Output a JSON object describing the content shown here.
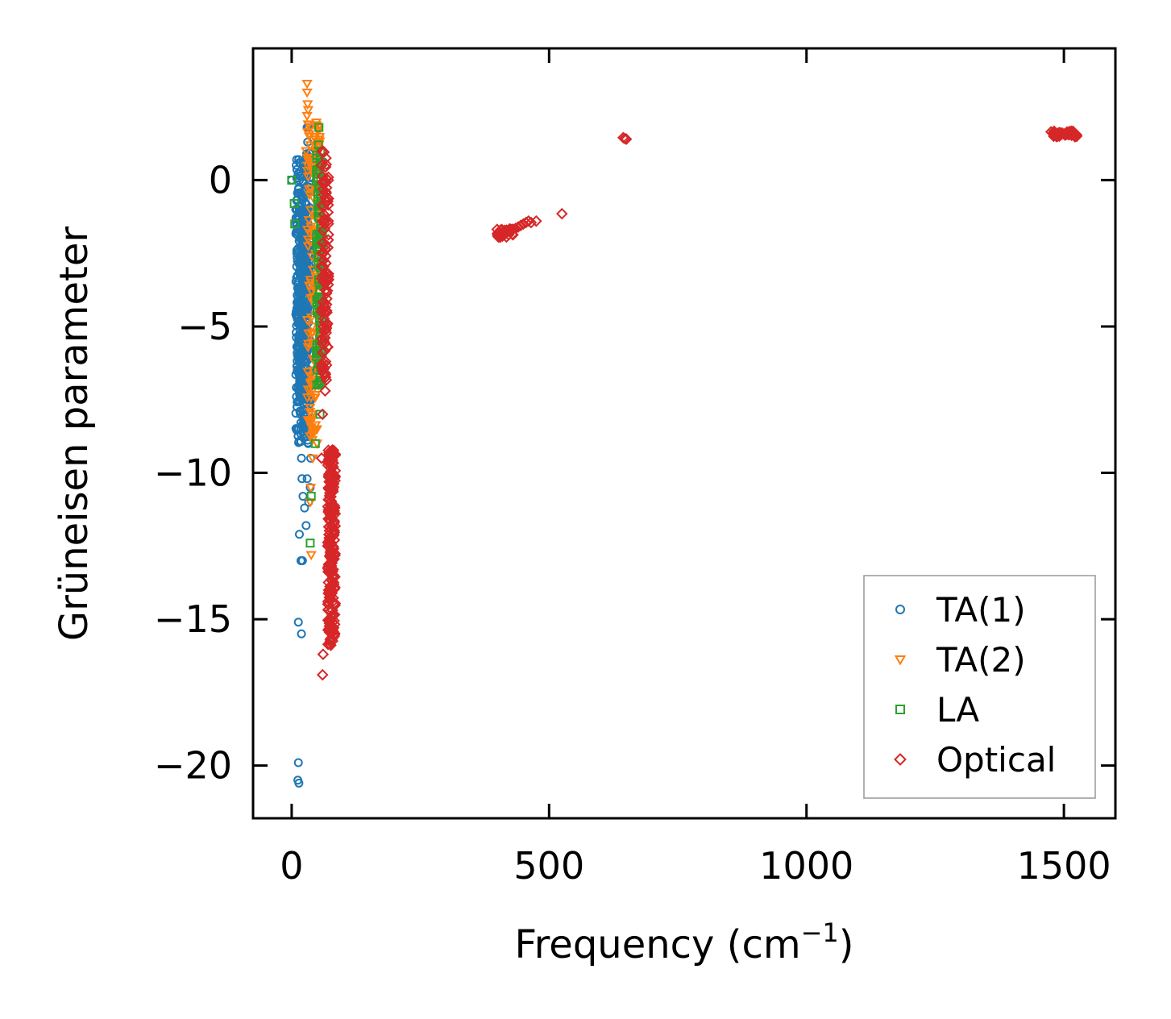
{
  "chart_data": {
    "type": "scatter",
    "title": "",
    "xlabel": "Frequency (cm",
    "xlabel_sup": "−1",
    "xlabel_end": ")",
    "ylabel": "Grüneisen parameter",
    "xlim": [
      -75,
      1600
    ],
    "ylim": [
      -21.8,
      4.5
    ],
    "xticks": [
      0,
      500,
      1000,
      1500
    ],
    "xtick_labels": [
      "0",
      "500",
      "1000",
      "1500"
    ],
    "yticks": [
      0,
      -5,
      -10,
      -15,
      -20
    ],
    "ytick_labels": [
      "0",
      "−5",
      "−10",
      "−15",
      "−20"
    ],
    "legend_position": "lower-right",
    "series": [
      {
        "name": "TA(1)",
        "marker": "circle",
        "color": "#1f77b4",
        "points": [
          [
            0,
            0.0
          ],
          [
            8,
            -1.0
          ],
          [
            10,
            -2.5
          ],
          [
            12,
            -3.5
          ],
          [
            14,
            -5.5
          ],
          [
            15,
            -6.2
          ],
          [
            16,
            -7.0
          ],
          [
            17,
            -8.0
          ],
          [
            18,
            -8.5
          ],
          [
            19,
            -9.5
          ],
          [
            20,
            -10.2
          ],
          [
            22,
            -10.8
          ],
          [
            15,
            -12.1
          ],
          [
            18,
            -13.0
          ],
          [
            21,
            -13.0
          ],
          [
            13,
            -15.1
          ],
          [
            19,
            -15.5
          ],
          [
            13,
            -19.9
          ],
          [
            12,
            -20.5
          ],
          [
            14,
            -20.6
          ],
          [
            20,
            -1.5
          ],
          [
            22,
            -2.0
          ],
          [
            24,
            -3.0
          ],
          [
            25,
            -4.0
          ],
          [
            26,
            -5.0
          ],
          [
            27,
            -6.0
          ],
          [
            28,
            -7.0
          ],
          [
            29,
            -4.5
          ],
          [
            30,
            -2.2
          ],
          [
            31,
            -1.2
          ],
          [
            28,
            -0.5
          ],
          [
            27,
            0.4
          ],
          [
            29,
            0.9
          ],
          [
            31,
            1.3
          ],
          [
            30,
            1.8
          ],
          [
            33,
            1.8
          ],
          [
            35,
            -3.8
          ],
          [
            36,
            -5.5
          ],
          [
            38,
            -7.5
          ],
          [
            32,
            -9.0
          ],
          [
            30,
            -10.2
          ],
          [
            33,
            -11.0
          ],
          [
            28,
            -11.8
          ],
          [
            18,
            -4.2
          ],
          [
            19,
            -6.8
          ],
          [
            23,
            -8.8
          ],
          [
            34,
            -6.5
          ],
          [
            37,
            -9.5
          ],
          [
            25,
            -11.2
          ],
          [
            36,
            -10.5
          ]
        ],
        "bands": [
          [
            8,
            36,
            -9.0,
            1.0,
            360
          ],
          [
            10,
            30,
            -7.5,
            -1.0,
            160
          ]
        ]
      },
      {
        "name": "TA(2)",
        "marker": "triangle-down",
        "color": "#ff7f0e",
        "points": [
          [
            30,
            3.3
          ],
          [
            30,
            3.0
          ],
          [
            31,
            2.6
          ],
          [
            32,
            2.4
          ],
          [
            30,
            2.2
          ],
          [
            33,
            1.9
          ],
          [
            34,
            1.5
          ],
          [
            28,
            1.0
          ],
          [
            31,
            0.5
          ],
          [
            35,
            -0.5
          ],
          [
            36,
            -1.8
          ],
          [
            38,
            -3.5
          ],
          [
            40,
            -5.0
          ],
          [
            42,
            -6.5
          ],
          [
            39,
            -8.0
          ],
          [
            41,
            -9.5
          ],
          [
            37,
            -10.5
          ],
          [
            36,
            -11.0
          ],
          [
            38,
            -12.8
          ],
          [
            44,
            -4.0
          ],
          [
            46,
            -2.5
          ],
          [
            45,
            -6.8
          ],
          [
            52,
            -7.0
          ],
          [
            54,
            -5.2
          ],
          [
            48,
            -8.5
          ],
          [
            50,
            -1.0
          ],
          [
            55,
            -3.0
          ],
          [
            57,
            -6.0
          ]
        ],
        "bands": [
          [
            30,
            56,
            -9.0,
            2.0,
            140
          ]
        ]
      },
      {
        "name": "LA",
        "marker": "square",
        "color": "#2ca02c",
        "points": [
          [
            0,
            0.0
          ],
          [
            5,
            -0.8
          ],
          [
            6,
            -1.5
          ],
          [
            53,
            1.8
          ],
          [
            52,
            1.2
          ],
          [
            55,
            0.3
          ],
          [
            56,
            -0.8
          ],
          [
            57,
            -1.8
          ],
          [
            55,
            -3.0
          ],
          [
            54,
            -4.5
          ],
          [
            56,
            -5.5
          ],
          [
            53,
            -7.0
          ],
          [
            55,
            -8.0
          ],
          [
            38,
            -10.8
          ],
          [
            36,
            -12.4
          ],
          [
            50,
            -2.2
          ],
          [
            58,
            -2.8
          ],
          [
            59,
            -4.0
          ],
          [
            57,
            -6.5
          ],
          [
            46,
            -9.0
          ]
        ],
        "bands": [
          [
            48,
            60,
            -7.0,
            1.0,
            110
          ]
        ]
      },
      {
        "name": "Optical",
        "marker": "diamond",
        "color": "#d62728",
        "points": [
          [
            60,
            1.0
          ],
          [
            58,
            0.5
          ],
          [
            62,
            -0.5
          ],
          [
            64,
            -1.5
          ],
          [
            61,
            -2.5
          ],
          [
            63,
            -3.5
          ],
          [
            62,
            -5.0
          ],
          [
            60,
            -6.5
          ],
          [
            65,
            -7.2
          ],
          [
            60,
            -8.0
          ],
          [
            66,
            -6.2
          ],
          [
            58,
            -9.5
          ],
          [
            61,
            -16.2
          ],
          [
            60,
            -16.9
          ],
          [
            400,
            -1.9
          ],
          [
            405,
            -1.95
          ],
          [
            410,
            -1.85
          ],
          [
            415,
            -1.8
          ],
          [
            420,
            -1.75
          ],
          [
            425,
            -1.7
          ],
          [
            430,
            -1.68
          ],
          [
            435,
            -1.65
          ],
          [
            440,
            -1.6
          ],
          [
            445,
            -1.55
          ],
          [
            450,
            -1.5
          ],
          [
            455,
            -1.45
          ],
          [
            460,
            -1.4
          ],
          [
            465,
            -1.45
          ],
          [
            475,
            -1.4
          ],
          [
            525,
            -1.15
          ],
          [
            644,
            1.45
          ],
          [
            647,
            1.42
          ],
          [
            650,
            1.4
          ],
          [
            1475,
            1.65
          ],
          [
            1480,
            1.62
          ],
          [
            1485,
            1.6
          ],
          [
            1490,
            1.6
          ],
          [
            1495,
            1.58
          ],
          [
            1500,
            1.57
          ],
          [
            1505,
            1.56
          ],
          [
            1510,
            1.55
          ],
          [
            1515,
            1.53
          ],
          [
            1520,
            1.52
          ],
          [
            1525,
            1.5
          ]
        ],
        "bands": [
          [
            58,
            72,
            -7.0,
            1.0,
            110
          ],
          [
            70,
            85,
            -16.0,
            -9.2,
            230
          ],
          [
            1478,
            1525,
            1.48,
            1.68,
            40
          ],
          [
            398,
            430,
            -1.95,
            -1.65,
            24
          ]
        ]
      }
    ]
  },
  "legend": {
    "items": [
      {
        "label": "TA(1)",
        "marker": "circle",
        "color": "#1f77b4"
      },
      {
        "label": "TA(2)",
        "marker": "triangle-down",
        "color": "#ff7f0e"
      },
      {
        "label": "LA",
        "marker": "square",
        "color": "#2ca02c"
      },
      {
        "label": "Optical",
        "marker": "diamond",
        "color": "#d62728"
      }
    ]
  }
}
